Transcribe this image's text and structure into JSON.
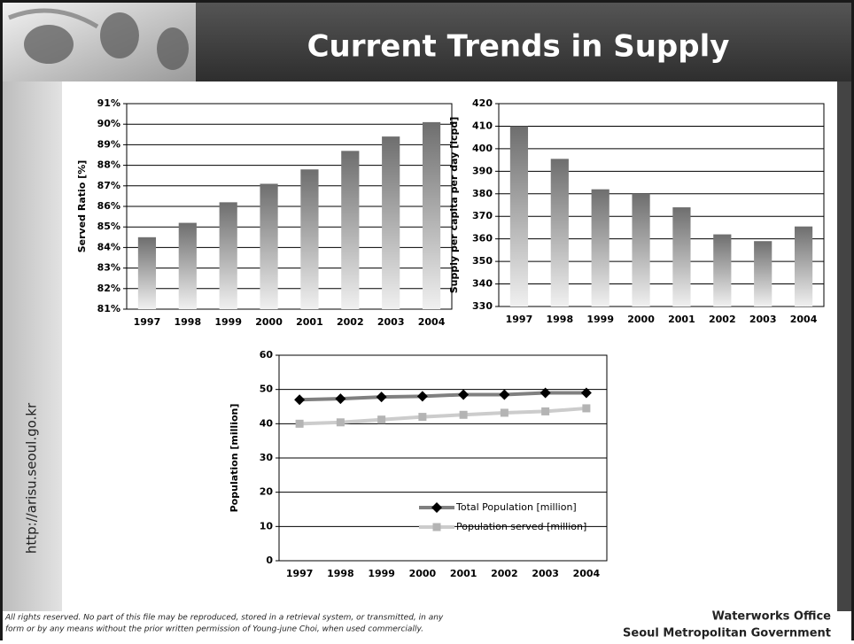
{
  "slide": {
    "title": "Current Trends in Supply",
    "url": "http://arisu.seoul.go.kr",
    "notice": [
      "All rights reserved. No part of this file may be reproduced, stored in a retrieval system, or transmitted, in any",
      "form or by any means without the prior written permission of Young-june Choi, when used commercially."
    ],
    "office": [
      "Waterworks Office",
      "Seoul Metropolitan Government"
    ]
  },
  "chart_data": [
    {
      "type": "bar",
      "ylabel": "Served Ratio [%]",
      "color": "#6e6e6e",
      "categories": [
        "1997",
        "1998",
        "1999",
        "2000",
        "2001",
        "2002",
        "2003",
        "2004"
      ],
      "values": [
        84.5,
        85.2,
        86.2,
        87.1,
        87.8,
        88.7,
        89.4,
        90.1
      ],
      "ylim": [
        81,
        91
      ],
      "yticks": [
        {
          "value": 81,
          "label": "81%"
        },
        {
          "value": 82,
          "label": "82%"
        },
        {
          "value": 83,
          "label": "83%"
        },
        {
          "value": 84,
          "label": "84%"
        },
        {
          "value": 85,
          "label": "85%"
        },
        {
          "value": 86,
          "label": "86%"
        },
        {
          "value": 87,
          "label": "87%"
        },
        {
          "value": 88,
          "label": "88%"
        },
        {
          "value": 89,
          "label": "89%"
        },
        {
          "value": 90,
          "label": "90%"
        },
        {
          "value": 91,
          "label": "91%"
        }
      ],
      "grid": true
    },
    {
      "type": "bar",
      "ylabel": "Supply per capita per day [lcpd]",
      "color": "#6e6e6e",
      "categories": [
        "1997",
        "1998",
        "1999",
        "2000",
        "2001",
        "2002",
        "2003",
        "2004"
      ],
      "values": [
        410,
        395.5,
        382,
        380,
        374,
        362,
        359,
        365.5
      ],
      "ylim": [
        330,
        420
      ],
      "yticks": [
        330,
        340,
        350,
        360,
        370,
        380,
        390,
        400,
        410,
        420
      ],
      "grid": true
    },
    {
      "type": "line",
      "ylabel": "Population [million]",
      "categories": [
        "1997",
        "1998",
        "1999",
        "2000",
        "2001",
        "2002",
        "2003",
        "2004"
      ],
      "series": [
        {
          "name": "Total Population [million]",
          "color": "#808080",
          "marker_color": "#000000",
          "marker": "diamond",
          "values": [
            47,
            47.3,
            47.8,
            48,
            48.5,
            48.5,
            49,
            49
          ]
        },
        {
          "name": "Population served [million]",
          "color": "#cccccc",
          "marker_color": "#b4b4b4",
          "marker": "square",
          "values": [
            40,
            40.4,
            41.2,
            42,
            42.6,
            43.2,
            43.6,
            44.5
          ]
        }
      ],
      "ylim": [
        0,
        60
      ],
      "yticks": [
        0,
        10,
        20,
        30,
        40,
        50,
        60
      ],
      "grid": true,
      "legend": "lower right"
    }
  ]
}
